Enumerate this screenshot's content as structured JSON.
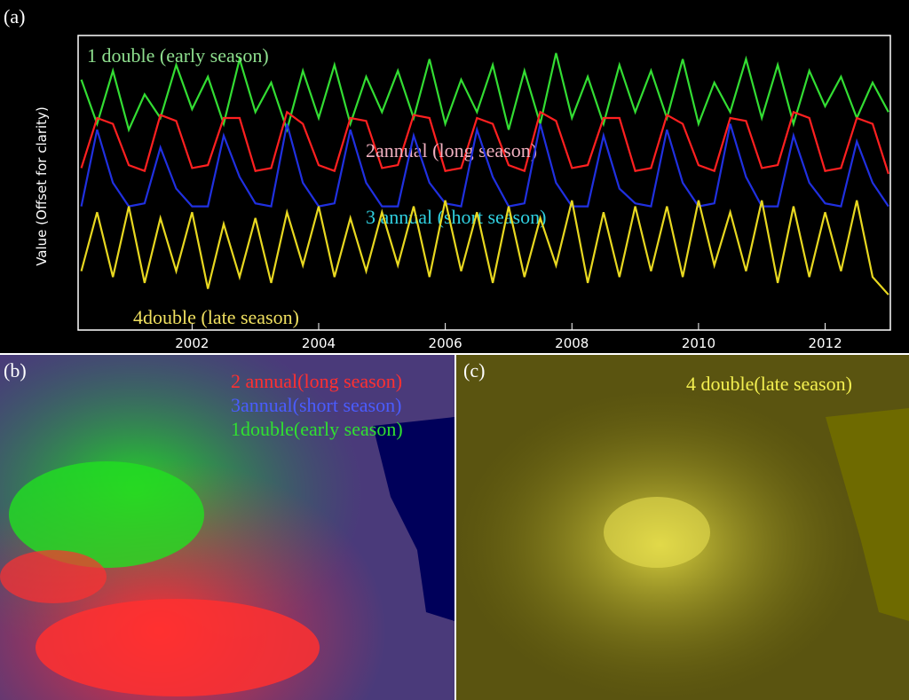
{
  "chart_data": {
    "type": "line",
    "panel_label": "(a)",
    "ylabel": "Value (Offset for clarity)",
    "x": [
      2000.25,
      2000.5,
      2000.75,
      2001,
      2001.25,
      2001.5,
      2001.75,
      2002,
      2002.25,
      2002.5,
      2002.75,
      2003,
      2003.25,
      2003.5,
      2003.75,
      2004,
      2004.25,
      2004.5,
      2004.75,
      2005,
      2005.25,
      2005.5,
      2005.75,
      2006,
      2006.25,
      2006.5,
      2006.75,
      2007,
      2007.25,
      2007.5,
      2007.75,
      2008,
      2008.25,
      2008.5,
      2008.75,
      2009,
      2009.25,
      2009.5,
      2009.75,
      2010,
      2010.25,
      2010.5,
      2010.75,
      2011,
      2011.25,
      2011.5,
      2011.75,
      2012,
      2012.25,
      2012.5,
      2012.75,
      2013
    ],
    "xlim": [
      2000.2,
      2013.03
    ],
    "xticks": [
      2002,
      2004,
      2006,
      2008,
      2010,
      2012
    ],
    "ylim": [
      0,
      100
    ],
    "series": [
      {
        "name": "1 double (early season)",
        "color": "#33dd33",
        "label_color": "#8fe08f",
        "values": [
          85,
          70,
          88,
          68,
          80,
          72,
          90,
          75,
          86,
          70,
          92,
          74,
          84,
          68,
          88,
          72,
          90,
          70,
          86,
          74,
          88,
          72,
          92,
          70,
          85,
          74,
          90,
          68,
          88,
          70,
          94,
          72,
          86,
          70,
          90,
          74,
          88,
          72,
          92,
          70,
          84,
          74,
          92,
          72,
          90,
          70,
          88,
          76,
          86,
          72,
          84,
          74
        ]
      },
      {
        "name": "2annual (long season)",
        "color": "#ff2020",
        "label_color": "#f0b0c0",
        "values": [
          55,
          72,
          70,
          56,
          54,
          73,
          71,
          55,
          56,
          72,
          72,
          54,
          55,
          74,
          70,
          56,
          54,
          72,
          71,
          55,
          56,
          73,
          72,
          54,
          55,
          72,
          70,
          56,
          54,
          74,
          71,
          55,
          56,
          72,
          72,
          54,
          55,
          73,
          70,
          56,
          54,
          72,
          71,
          55,
          56,
          74,
          72,
          54,
          55,
          72,
          70,
          53
        ]
      },
      {
        "name": "3 annual (short season)",
        "color": "#2030e0",
        "label_color": "#30d0e0",
        "values": [
          42,
          68,
          50,
          42,
          43,
          62,
          48,
          42,
          42,
          66,
          52,
          43,
          42,
          70,
          50,
          42,
          43,
          68,
          50,
          42,
          42,
          66,
          50,
          43,
          42,
          68,
          52,
          42,
          43,
          70,
          50,
          42,
          42,
          66,
          48,
          43,
          42,
          68,
          50,
          42,
          43,
          70,
          52,
          42,
          42,
          66,
          50,
          43,
          42,
          64,
          50,
          42
        ]
      },
      {
        "name": "4double (late season)",
        "color": "#e8d820",
        "label_color": "#f0e060",
        "values": [
          20,
          40,
          18,
          42,
          16,
          38,
          20,
          40,
          14,
          36,
          18,
          38,
          16,
          40,
          22,
          42,
          18,
          38,
          20,
          40,
          22,
          42,
          18,
          44,
          20,
          40,
          16,
          42,
          18,
          38,
          22,
          44,
          16,
          40,
          18,
          42,
          20,
          42,
          18,
          44,
          22,
          40,
          20,
          44,
          16,
          42,
          18,
          40,
          20,
          44,
          18,
          12
        ]
      }
    ]
  },
  "panels": [
    {
      "label": "(b)",
      "legend": [
        {
          "text": "2 annual(long season)",
          "color": "#ff3030"
        },
        {
          "text": "3annual(short season)",
          "color": "#4a5cff"
        },
        {
          "text": "1double(early season)",
          "color": "#30e030"
        }
      ]
    },
    {
      "label": "(c)",
      "legend": [
        {
          "text": "4 double(late season)",
          "color": "#f4f050"
        }
      ]
    }
  ]
}
